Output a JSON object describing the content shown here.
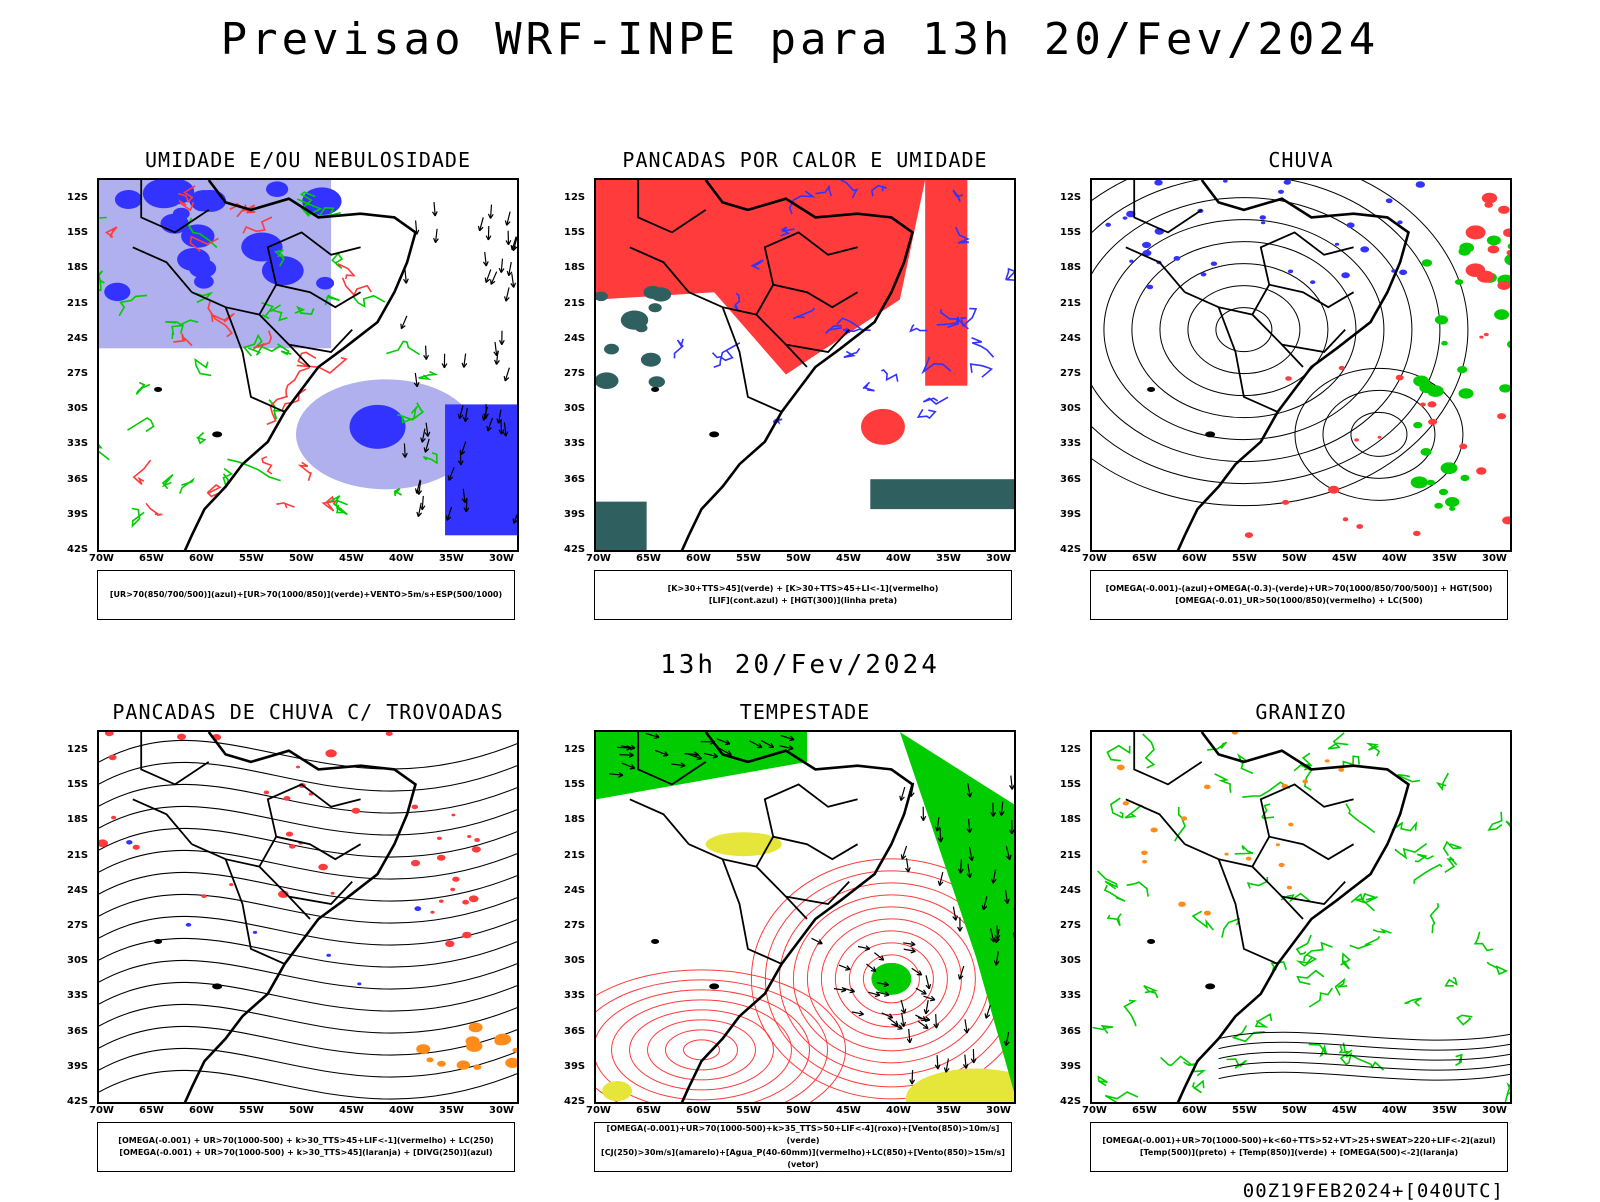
{
  "header": {
    "title": "Previsao WRF-INPE  para 13h 20/Fev/2024"
  },
  "mid_label": "13h 20/Fev/2024",
  "footer": {
    "stamp": "00Z19FEB2024+[040UTC]"
  },
  "axes": {
    "lat": [
      "12S",
      "15S",
      "18S",
      "21S",
      "24S",
      "27S",
      "30S",
      "33S",
      "36S",
      "39S",
      "42S"
    ],
    "lon": [
      "70W",
      "65W",
      "60W",
      "55W",
      "50W",
      "45W",
      "40W",
      "35W",
      "30W"
    ]
  },
  "colors": {
    "red": "#ff3b3b",
    "green": "#00cc00",
    "blue": "#3333ff",
    "lightblue": "#b0b0ee",
    "orange": "#ff8c1a",
    "yellow": "#e6e63a",
    "teal": "#2f5f5f"
  },
  "panels": [
    {
      "title": "UMIDADE E/OU NEBULOSIDADE",
      "legend": [
        "[UR>70(850/700/500)](azul)+[UR>70(1000/850)](verde)+VENTO>5m/s+ESP(500/1000)"
      ]
    },
    {
      "title": "PANCADAS POR CALOR E UMIDADE",
      "legend": [
        "[K>30+TTS>45](verde) + [K>30+TTS>45+LI<-1](vermelho)",
        "[LIF](cont.azul) + [HGT(300)](linha preta)"
      ]
    },
    {
      "title": "CHUVA",
      "legend": [
        "[OMEGA(-0.001)-(azul)+OMEGA(-0.3)-(verde)+UR>70(1000/850/700/500)] + HGT(500)",
        "[OMEGA(-0.01)_UR>50(1000/850)(vermelho) + LC(500)"
      ]
    },
    {
      "title": "PANCADAS DE CHUVA C/ TROVOADAS",
      "legend": [
        "[OMEGA(-0.001) + UR>70(1000-500) + k>30_TTS>45+LIF<-1](vermelho) + LC(250)",
        "[OMEGA(-0.001) + UR>70(1000-500) + k>30_TTS>45](laranja) + [DIVG(250)](azul)"
      ]
    },
    {
      "title": "TEMPESTADE",
      "legend": [
        "[OMEGA(-0.001)+UR>70(1000-500)+k>35_TTS>50+LIF<-4](roxo)+[Vento(850)>10m/s](verde)",
        "[CJ(250)>30m/s](amarelo)+[Agua_P(40-60mm)](vermelho)+LC(850)+[Vento(850)>15m/s](vetor)"
      ]
    },
    {
      "title": "GRANIZO",
      "legend": [
        "[OMEGA(-0.001)+UR>70(1000-500)+k<60+TTS>52+VT>25+SWEAT>220+LIF<-2](azul)",
        "[Temp(500)](preto) + [Temp(850)](verde) + [OMEGA(500)<-2](laranja)"
      ]
    }
  ]
}
